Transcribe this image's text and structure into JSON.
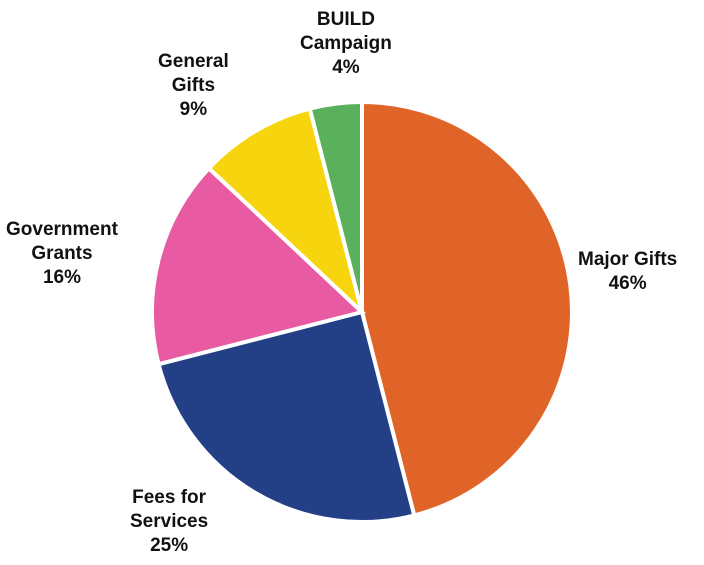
{
  "chart_data": {
    "type": "pie",
    "title": "",
    "start_angle_deg": 0,
    "direction": "clockwise",
    "slices": [
      {
        "name": "Major Gifts",
        "label_lines": [
          "Major Gifts"
        ],
        "value": 46,
        "value_label": "46%",
        "color": "#E06428"
      },
      {
        "name": "Fees for Services",
        "label_lines": [
          "Fees for",
          "Services"
        ],
        "value": 25,
        "value_label": "25%",
        "color": "#233F86"
      },
      {
        "name": "Government Grants",
        "label_lines": [
          "Government",
          "Grants"
        ],
        "value": 16,
        "value_label": "16%",
        "color": "#E85BA2"
      },
      {
        "name": "General Gifts",
        "label_lines": [
          "General",
          "Gifts"
        ],
        "value": 9,
        "value_label": "9%",
        "color": "#F7D50E"
      },
      {
        "name": "BUILD Campaign",
        "label_lines": [
          "BUILD",
          "Campaign"
        ],
        "value": 4,
        "value_label": "4%",
        "color": "#5BB15B"
      }
    ]
  }
}
